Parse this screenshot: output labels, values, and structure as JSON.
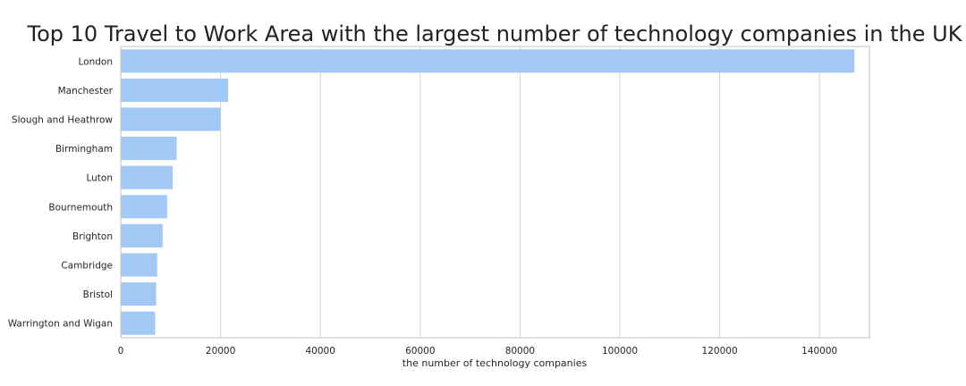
{
  "chart_data": {
    "type": "bar",
    "orientation": "horizontal",
    "title": "Top 10 Travel to Work Area with the largest number of technology companies in the UK",
    "xlabel": "the number of technology companies",
    "ylabel": "",
    "xlim": [
      0,
      150000
    ],
    "xticks": [
      0,
      20000,
      40000,
      60000,
      80000,
      100000,
      120000,
      140000
    ],
    "xtick_labels": [
      "0",
      "20000",
      "40000",
      "60000",
      "80000",
      "100000",
      "120000",
      "140000"
    ],
    "grid": "vertical",
    "bar_color": "#a1c9f4",
    "categories": [
      "London",
      "Manchester",
      "Slough and Heathrow",
      "Birmingham",
      "Luton",
      "Bournemouth",
      "Brighton",
      "Cambridge",
      "Bristol",
      "Warrington and Wigan"
    ],
    "values": [
      147000,
      21500,
      20000,
      11200,
      10400,
      9300,
      8400,
      7300,
      7100,
      6900
    ]
  }
}
